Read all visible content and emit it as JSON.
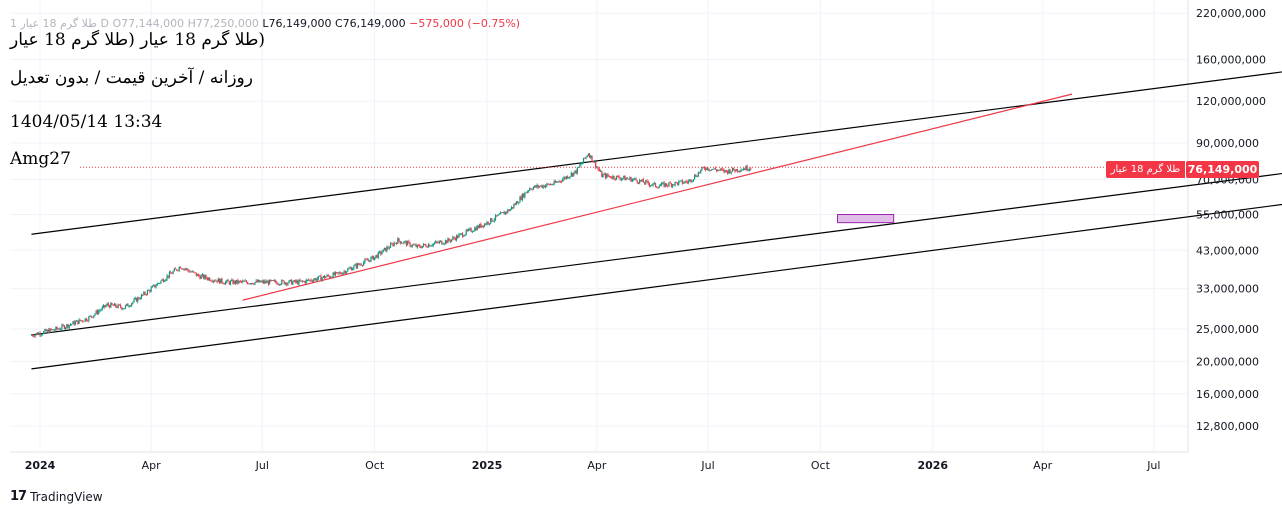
{
  "header": {
    "ghost_text": "طلا گرم 18 عیار 1  D  O77,144,000  H77,250,000",
    "low": "L76,149,000",
    "close": "C76,149,000",
    "change": "−575,000 (−0.75%)"
  },
  "notes": {
    "title": "(طلا گرم 18 عیار (طلا گرم 18 عیار",
    "subtitle": "روزانه / آخرین قیمت / بدون تعدیل",
    "datetime": "1404/05/14 13:34",
    "author": "Amg27"
  },
  "price_tag": {
    "value": "76,149,000",
    "symbol": "طلا گرم 18 عیار",
    "color": "#f23645"
  },
  "brand": {
    "logo": "17",
    "name": "TradingView"
  },
  "chart_data": {
    "type": "candlestick",
    "scale": "log",
    "y_ticks": [
      "220,000,000",
      "160,000,000",
      "120,000,000",
      "90,000,000",
      "70,000,000",
      "55,000,000",
      "43,000,000",
      "33,000,000",
      "25,000,000",
      "20,000,000",
      "16,000,000",
      "12,800,000"
    ],
    "x_ticks": [
      {
        "label": "2024",
        "bold": true
      },
      {
        "label": "Apr",
        "bold": false
      },
      {
        "label": "Jul",
        "bold": false
      },
      {
        "label": "Oct",
        "bold": false
      },
      {
        "label": "2025",
        "bold": true
      },
      {
        "label": "Apr",
        "bold": false
      },
      {
        "label": "Jul",
        "bold": false
      },
      {
        "label": "Oct",
        "bold": false
      },
      {
        "label": "2026",
        "bold": true
      },
      {
        "label": "Apr",
        "bold": false
      },
      {
        "label": "Jul",
        "bold": false
      }
    ],
    "price_path": [
      [
        "2023-12-25",
        24000000
      ],
      [
        "2024-01-15",
        25000000
      ],
      [
        "2024-02-10",
        27000000
      ],
      [
        "2024-02-25",
        29500000
      ],
      [
        "2024-03-10",
        29000000
      ],
      [
        "2024-03-25",
        31500000
      ],
      [
        "2024-04-10",
        35000000
      ],
      [
        "2024-04-25",
        38500000
      ],
      [
        "2024-05-10",
        36000000
      ],
      [
        "2024-06-01",
        34500000
      ],
      [
        "2024-07-01",
        34500000
      ],
      [
        "2024-08-01",
        34500000
      ],
      [
        "2024-09-01",
        36500000
      ],
      [
        "2024-10-01",
        41000000
      ],
      [
        "2024-10-20",
        46000000
      ],
      [
        "2024-11-05",
        44000000
      ],
      [
        "2024-12-01",
        46000000
      ],
      [
        "2025-01-01",
        52000000
      ],
      [
        "2025-01-20",
        57000000
      ],
      [
        "2025-02-05",
        66000000
      ],
      [
        "2025-02-25",
        68000000
      ],
      [
        "2025-03-15",
        74000000
      ],
      [
        "2025-03-25",
        84000000
      ],
      [
        "2025-04-05",
        72000000
      ],
      [
        "2025-05-01",
        70000000
      ],
      [
        "2025-05-20",
        67000000
      ],
      [
        "2025-06-15",
        69000000
      ],
      [
        "2025-06-28",
        76000000
      ],
      [
        "2025-07-15",
        74000000
      ],
      [
        "2025-08-05",
        76149000
      ]
    ],
    "last_price": 76149000,
    "trendlines": [
      {
        "name": "upper-channel",
        "color": "#000000",
        "from": [
          "2023-12-25",
          48000000
        ],
        "to": [
          "2026-10-15",
          147000000
        ]
      },
      {
        "name": "middle-channel",
        "color": "#000000",
        "from": [
          "2023-12-25",
          24000000
        ],
        "to": [
          "2026-10-15",
          73000000
        ]
      },
      {
        "name": "lower-channel",
        "color": "#000000",
        "from": [
          "2023-12-25",
          19000000
        ],
        "to": [
          "2026-10-15",
          59000000
        ]
      },
      {
        "name": "red-support",
        "color": "#f23645",
        "from": [
          "2024-06-15",
          30500000
        ],
        "to": [
          "2026-04-25",
          126000000
        ]
      }
    ],
    "highlight_box": {
      "from": [
        "2025-10-15",
        52000000
      ],
      "to": [
        "2025-11-30",
        55000000
      ],
      "fill": "#e1bee7",
      "stroke": "#9c27b0"
    },
    "colors": {
      "up": "#089981",
      "down": "#f23645",
      "grid": "#f0f3fa",
      "axis_text": "#131722"
    }
  }
}
